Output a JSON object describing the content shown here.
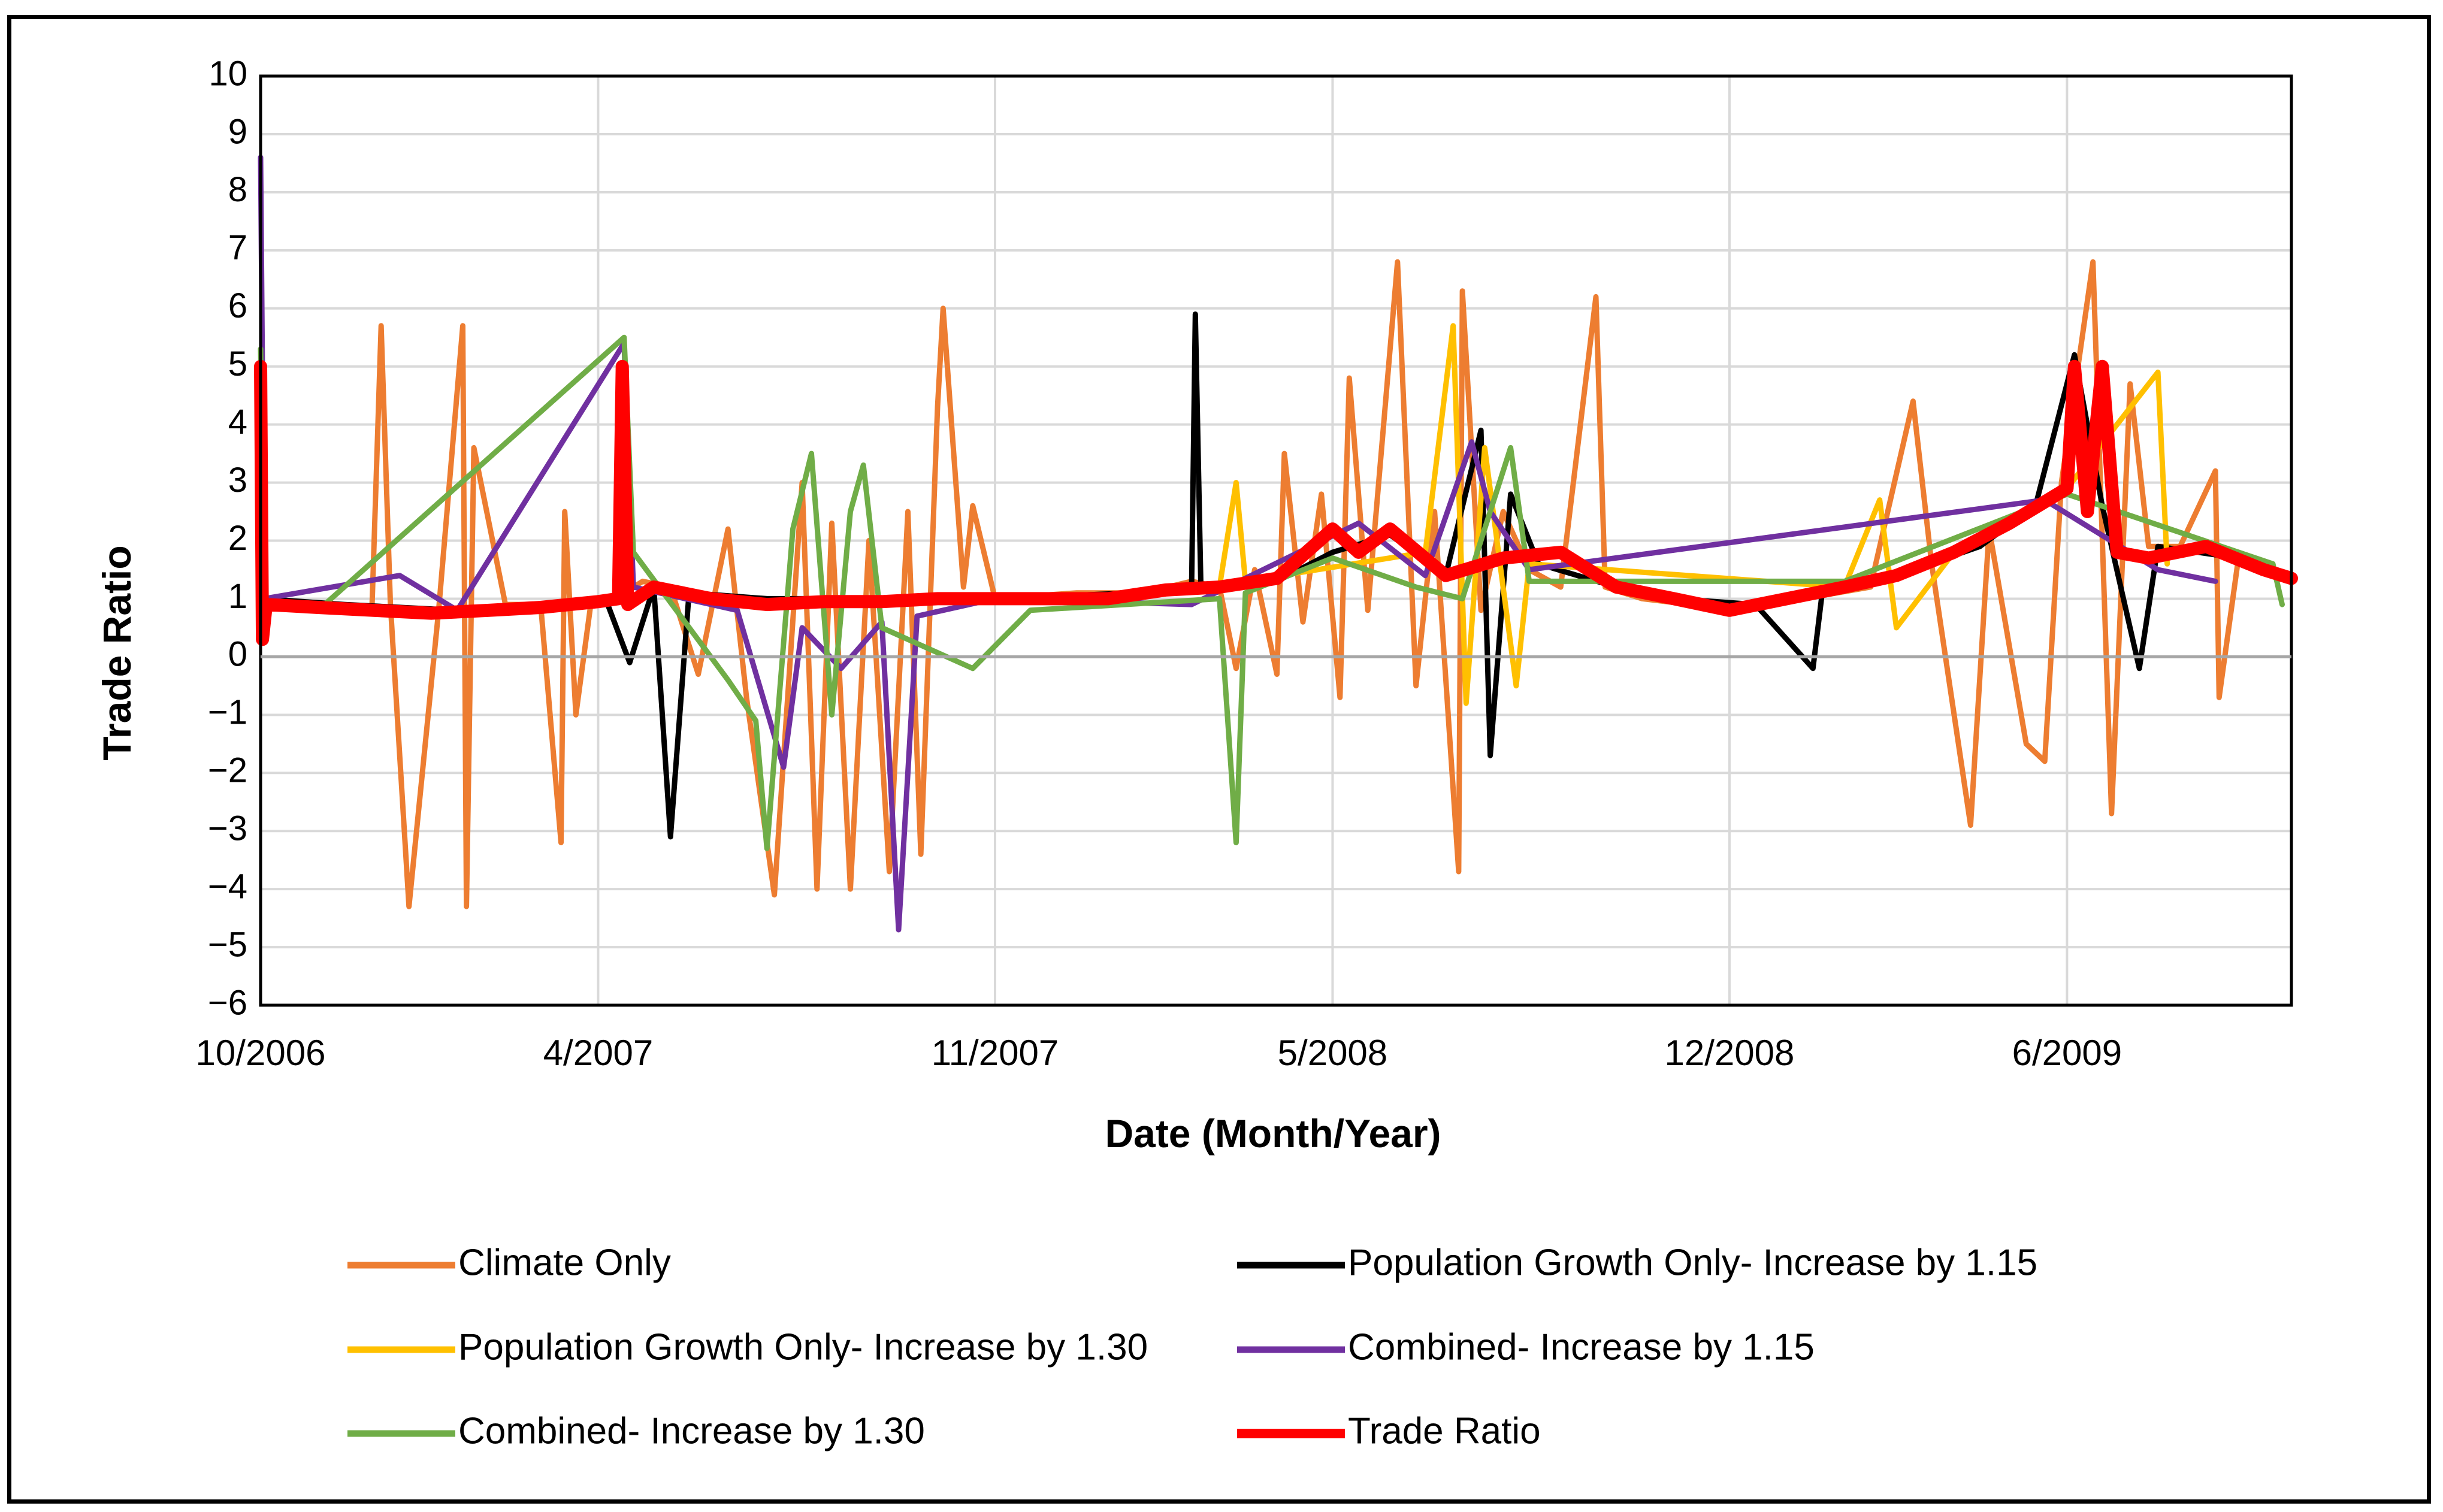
{
  "chart_data": {
    "type": "line",
    "title": "",
    "xlabel": "Date (Month/Year)",
    "ylabel": "Trade Ratio",
    "ylim": [
      -6,
      10
    ],
    "yticks": [
      10,
      9,
      8,
      7,
      6,
      5,
      4,
      3,
      2,
      1,
      0,
      -1,
      -2,
      -3,
      -4,
      -5,
      -6
    ],
    "xticks": [
      "10/2006",
      "4/2007",
      "11/2007",
      "5/2008",
      "12/2008",
      "6/2009"
    ],
    "xlim": [
      "2006-10-01",
      "2009-09-30"
    ],
    "grid": true,
    "legend_position": "bottom",
    "series": [
      {
        "name": "Climate Only",
        "color": "#ED7D31",
        "points": [
          [
            "2006-10-01",
            1.0
          ],
          [
            "2006-10-20",
            0.9
          ],
          [
            "2006-11-10",
            0.8
          ],
          [
            "2006-11-30",
            0.8
          ],
          [
            "2006-12-05",
            5.7
          ],
          [
            "2006-12-10",
            0.9
          ],
          [
            "2006-12-20",
            -4.3
          ],
          [
            "2007-01-05",
            0.8
          ],
          [
            "2007-01-18",
            5.7
          ],
          [
            "2007-01-20",
            -4.3
          ],
          [
            "2007-01-24",
            3.6
          ],
          [
            "2007-02-10",
            0.9
          ],
          [
            "2007-03-01",
            0.9
          ],
          [
            "2007-03-12",
            -3.2
          ],
          [
            "2007-03-14",
            2.5
          ],
          [
            "2007-03-20",
            -1.0
          ],
          [
            "2007-03-28",
            0.9
          ],
          [
            "2007-04-10",
            1.0
          ],
          [
            "2007-04-25",
            1.3
          ],
          [
            "2007-05-10",
            1.2
          ],
          [
            "2007-05-25",
            -0.3
          ],
          [
            "2007-06-10",
            2.2
          ],
          [
            "2007-06-20",
            -0.7
          ],
          [
            "2007-07-05",
            -4.1
          ],
          [
            "2007-07-20",
            3.0
          ],
          [
            "2007-07-28",
            -4.0
          ],
          [
            "2007-08-05",
            2.3
          ],
          [
            "2007-08-15",
            -4.0
          ],
          [
            "2007-08-25",
            2.0
          ],
          [
            "2007-09-05",
            -3.7
          ],
          [
            "2007-09-15",
            2.5
          ],
          [
            "2007-09-22",
            -3.4
          ],
          [
            "2007-10-01",
            4.3
          ],
          [
            "2007-10-04",
            6.0
          ],
          [
            "2007-10-15",
            1.2
          ],
          [
            "2007-10-20",
            2.6
          ],
          [
            "2007-11-01",
            1.0
          ],
          [
            "2007-12-15",
            1.1
          ],
          [
            "2008-01-20",
            1.1
          ],
          [
            "2008-02-15",
            1.3
          ],
          [
            "2008-03-01",
            1.2
          ],
          [
            "2008-03-10",
            -0.2
          ],
          [
            "2008-03-20",
            1.5
          ],
          [
            "2008-04-01",
            -0.3
          ],
          [
            "2008-04-05",
            3.5
          ],
          [
            "2008-04-15",
            0.6
          ],
          [
            "2008-04-25",
            2.8
          ],
          [
            "2008-05-05",
            -0.7
          ],
          [
            "2008-05-10",
            4.8
          ],
          [
            "2008-05-20",
            0.8
          ],
          [
            "2008-06-05",
            6.8
          ],
          [
            "2008-06-15",
            -0.5
          ],
          [
            "2008-06-25",
            2.5
          ],
          [
            "2008-07-08",
            -3.7
          ],
          [
            "2008-07-10",
            6.3
          ],
          [
            "2008-07-20",
            0.8
          ],
          [
            "2008-08-01",
            2.5
          ],
          [
            "2008-08-15",
            1.5
          ],
          [
            "2008-09-01",
            1.2
          ],
          [
            "2008-09-20",
            6.2
          ],
          [
            "2008-09-25",
            1.2
          ],
          [
            "2008-10-15",
            1.0
          ],
          [
            "2008-11-10",
            0.9
          ],
          [
            "2008-12-10",
            0.9
          ],
          [
            "2009-01-10",
            1.0
          ],
          [
            "2009-02-15",
            1.2
          ],
          [
            "2009-03-10",
            4.4
          ],
          [
            "2009-03-20",
            1.6
          ],
          [
            "2009-04-10",
            -2.9
          ],
          [
            "2009-04-20",
            2.2
          ],
          [
            "2009-05-10",
            -1.5
          ],
          [
            "2009-05-20",
            -1.8
          ],
          [
            "2009-05-29",
            3.0
          ],
          [
            "2009-06-15",
            6.8
          ],
          [
            "2009-06-25",
            -2.7
          ],
          [
            "2009-07-05",
            4.7
          ],
          [
            "2009-07-15",
            1.9
          ],
          [
            "2009-08-01",
            1.9
          ],
          [
            "2009-08-20",
            3.2
          ],
          [
            "2009-08-22",
            -0.7
          ],
          [
            "2009-09-01",
            1.6
          ],
          [
            "2009-09-30",
            1.4
          ]
        ]
      },
      {
        "name": "Population Growth Only- Increase by 1.15",
        "color": "#000000",
        "points": [
          [
            "2006-10-01",
            1.0
          ],
          [
            "2006-11-15",
            0.9
          ],
          [
            "2007-01-15",
            0.8
          ],
          [
            "2007-03-15",
            0.9
          ],
          [
            "2007-04-05",
            1.0
          ],
          [
            "2007-04-18",
            -0.1
          ],
          [
            "2007-05-01",
            1.2
          ],
          [
            "2007-05-10",
            -3.1
          ],
          [
            "2007-05-20",
            1.1
          ],
          [
            "2007-07-01",
            1.0
          ],
          [
            "2007-09-01",
            1.0
          ],
          [
            "2007-11-01",
            1.0
          ],
          [
            "2008-01-15",
            1.1
          ],
          [
            "2008-02-15",
            1.2
          ],
          [
            "2008-02-17",
            5.9
          ],
          [
            "2008-02-20",
            1.2
          ],
          [
            "2008-04-01",
            1.3
          ],
          [
            "2008-05-01",
            1.8
          ],
          [
            "2008-06-01",
            2.1
          ],
          [
            "2008-07-01",
            1.4
          ],
          [
            "2008-07-20",
            3.9
          ],
          [
            "2008-07-25",
            -1.7
          ],
          [
            "2008-08-05",
            2.8
          ],
          [
            "2008-08-20",
            1.6
          ],
          [
            "2008-10-01",
            1.2
          ],
          [
            "2008-11-01",
            1.0
          ],
          [
            "2008-12-15",
            0.9
          ],
          [
            "2009-01-15",
            -0.2
          ],
          [
            "2009-01-20",
            1.1
          ],
          [
            "2009-03-01",
            1.4
          ],
          [
            "2009-04-15",
            1.9
          ],
          [
            "2009-05-15",
            2.6
          ],
          [
            "2009-06-05",
            5.2
          ],
          [
            "2009-06-20",
            2.6
          ],
          [
            "2009-07-10",
            -0.2
          ],
          [
            "2009-07-20",
            1.9
          ],
          [
            "2009-09-01",
            1.7
          ],
          [
            "2009-09-30",
            1.3
          ]
        ]
      },
      {
        "name": "Population Growth Only- Increase by 1.30",
        "color": "#FFC000",
        "points": [
          [
            "2008-03-01",
            1.2
          ],
          [
            "2008-03-10",
            3.0
          ],
          [
            "2008-03-15",
            1.3
          ],
          [
            "2008-06-20",
            1.8
          ],
          [
            "2008-07-05",
            5.7
          ],
          [
            "2008-07-12",
            -0.8
          ],
          [
            "2008-07-22",
            3.6
          ],
          [
            "2008-08-08",
            -0.5
          ],
          [
            "2008-08-15",
            1.6
          ],
          [
            "2009-02-01",
            1.2
          ],
          [
            "2009-02-20",
            2.7
          ],
          [
            "2009-03-01",
            0.5
          ],
          [
            "2009-04-01",
            1.8
          ],
          [
            "2009-06-01",
            2.9
          ],
          [
            "2009-07-20",
            4.9
          ],
          [
            "2009-07-25",
            1.6
          ]
        ]
      },
      {
        "name": "Combined- Increase by 1.15",
        "color": "#7030A0",
        "points": [
          [
            "2006-10-01",
            8.6
          ],
          [
            "2006-10-03",
            1.0
          ],
          [
            "2006-12-15",
            1.4
          ],
          [
            "2007-01-15",
            0.8
          ],
          [
            "2007-04-15",
            5.4
          ],
          [
            "2007-04-20",
            1.2
          ],
          [
            "2007-06-15",
            0.8
          ],
          [
            "2007-07-10",
            -1.9
          ],
          [
            "2007-07-20",
            0.5
          ],
          [
            "2007-08-10",
            -0.2
          ],
          [
            "2007-09-01",
            0.6
          ],
          [
            "2007-09-10",
            -4.7
          ],
          [
            "2007-09-20",
            0.7
          ],
          [
            "2007-11-01",
            1.0
          ],
          [
            "2008-02-15",
            0.9
          ],
          [
            "2008-05-15",
            2.3
          ],
          [
            "2008-06-20",
            1.4
          ],
          [
            "2008-07-15",
            3.7
          ],
          [
            "2008-07-25",
            2.5
          ],
          [
            "2008-08-15",
            1.5
          ],
          [
            "2009-05-20",
            2.7
          ],
          [
            "2009-07-20",
            1.5
          ],
          [
            "2009-08-20",
            1.3
          ]
        ]
      },
      {
        "name": "Combined- Increase by 1.30",
        "color": "#70AD47",
        "points": [
          [
            "2006-10-01",
            5.3
          ],
          [
            "2006-10-03",
            0.9
          ],
          [
            "2006-11-01",
            0.8
          ],
          [
            "2007-04-15",
            5.5
          ],
          [
            "2007-04-20",
            1.8
          ],
          [
            "2007-06-10",
            -0.4
          ],
          [
            "2007-06-25",
            -1.1
          ],
          [
            "2007-07-01",
            -3.3
          ],
          [
            "2007-07-15",
            2.2
          ],
          [
            "2007-07-25",
            3.5
          ],
          [
            "2007-08-05",
            -1.0
          ],
          [
            "2007-08-15",
            2.5
          ],
          [
            "2007-08-22",
            3.3
          ],
          [
            "2007-09-01",
            0.5
          ],
          [
            "2007-10-20",
            -0.2
          ],
          [
            "2007-11-20",
            0.8
          ],
          [
            "2008-03-01",
            1.0
          ],
          [
            "2008-03-10",
            -3.2
          ],
          [
            "2008-03-15",
            1.1
          ],
          [
            "2008-05-01",
            1.7
          ],
          [
            "2008-06-15",
            1.2
          ],
          [
            "2008-07-10",
            1.0
          ],
          [
            "2008-08-05",
            3.6
          ],
          [
            "2008-08-15",
            1.3
          ],
          [
            "2009-02-01",
            1.3
          ],
          [
            "2009-06-01",
            2.8
          ],
          [
            "2009-09-20",
            1.6
          ],
          [
            "2009-09-25",
            0.9
          ]
        ]
      },
      {
        "name": "Trade Ratio",
        "color": "#FF0000",
        "points": [
          [
            "2006-10-01",
            5.0
          ],
          [
            "2006-10-02",
            0.3
          ],
          [
            "2006-10-04",
            0.9
          ],
          [
            "2006-11-01",
            0.85
          ],
          [
            "2006-12-01",
            0.8
          ],
          [
            "2007-01-01",
            0.75
          ],
          [
            "2007-02-01",
            0.8
          ],
          [
            "2007-03-01",
            0.85
          ],
          [
            "2007-04-01",
            0.95
          ],
          [
            "2007-04-12",
            1.0
          ],
          [
            "2007-04-14",
            5.0
          ],
          [
            "2007-04-17",
            0.9
          ],
          [
            "2007-05-01",
            1.2
          ],
          [
            "2007-06-01",
            1.0
          ],
          [
            "2007-07-01",
            0.9
          ],
          [
            "2007-08-01",
            0.95
          ],
          [
            "2007-09-01",
            0.95
          ],
          [
            "2007-10-01",
            1.0
          ],
          [
            "2007-11-01",
            1.0
          ],
          [
            "2007-12-01",
            1.0
          ],
          [
            "2008-01-01",
            1.0
          ],
          [
            "2008-02-01",
            1.15
          ],
          [
            "2008-03-01",
            1.2
          ],
          [
            "2008-04-01",
            1.35
          ],
          [
            "2008-05-01",
            2.2
          ],
          [
            "2008-05-15",
            1.8
          ],
          [
            "2008-06-01",
            2.2
          ],
          [
            "2008-07-01",
            1.4
          ],
          [
            "2008-08-01",
            1.7
          ],
          [
            "2008-09-01",
            1.8
          ],
          [
            "2008-10-01",
            1.2
          ],
          [
            "2008-11-01",
            1.0
          ],
          [
            "2008-12-01",
            0.8
          ],
          [
            "2009-01-01",
            1.0
          ],
          [
            "2009-02-01",
            1.2
          ],
          [
            "2009-03-01",
            1.4
          ],
          [
            "2009-04-01",
            1.8
          ],
          [
            "2009-05-01",
            2.3
          ],
          [
            "2009-06-01",
            2.9
          ],
          [
            "2009-06-05",
            5.0
          ],
          [
            "2009-06-12",
            2.5
          ],
          [
            "2009-06-20",
            5.0
          ],
          [
            "2009-06-28",
            1.8
          ],
          [
            "2009-07-15",
            1.7
          ],
          [
            "2009-08-15",
            1.9
          ],
          [
            "2009-09-15",
            1.5
          ],
          [
            "2009-09-30",
            1.35
          ]
        ]
      }
    ]
  }
}
